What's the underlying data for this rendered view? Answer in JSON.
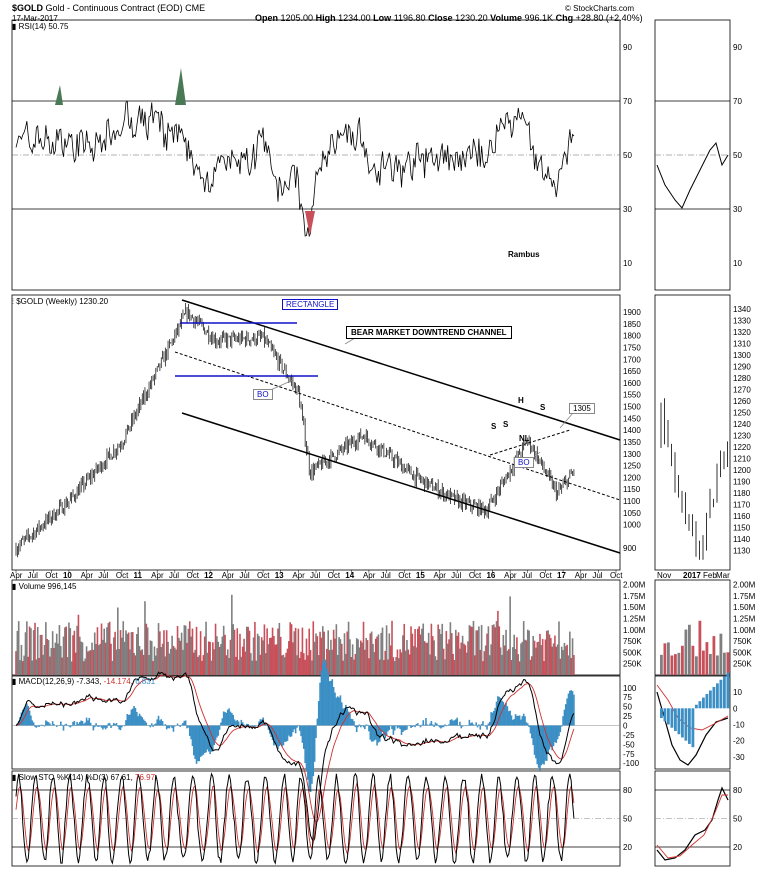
{
  "header": {
    "symbol": "$GOLD",
    "name": "Gold - Continuous Contract (EOD)",
    "exchange": "CME",
    "date": "17-Mar-2017",
    "open_label": "Open",
    "open": "1205.00",
    "high_label": "High",
    "high": "1234.00",
    "low_label": "Low",
    "low": "1196.80",
    "close_label": "Close",
    "close": "1230.20",
    "volume_label": "Volume",
    "volume": "996.1K",
    "chg_label": "Chg",
    "chg": "+28.80 (+2.40%)",
    "copyright": "© StockCharts.com"
  },
  "rsi_panel": {
    "legend": "RSI(14) 50.75",
    "ticks": [
      "90",
      "70",
      "50",
      "30",
      "10"
    ],
    "watermark": "Rambus"
  },
  "price_panel": {
    "legend": "$GOLD (Weekly) 1230.20",
    "ticks": [
      "1900",
      "1850",
      "1800",
      "1750",
      "1700",
      "1650",
      "1600",
      "1550",
      "1500",
      "1450",
      "1400",
      "1350",
      "1300",
      "1250",
      "1200",
      "1150",
      "1100",
      "1050",
      "1000",
      "900"
    ],
    "right_ticks": [
      "1340",
      "1330",
      "1320",
      "1310",
      "1300",
      "1290",
      "1280",
      "1270",
      "1260",
      "1250",
      "1240",
      "1230",
      "1220",
      "1210",
      "1200",
      "1190",
      "1180",
      "1170",
      "1160",
      "1150",
      "1140",
      "1130"
    ],
    "annotations": {
      "rectangle": "RECTANGLE",
      "channel": "BEAR MARKET DOWNTREND  CHANNEL",
      "bo1": "BO",
      "bo2": "BO",
      "target": "1305",
      "s1": "S",
      "s2": "S",
      "h": "H",
      "s3": "S",
      "nl": "NL"
    }
  },
  "x_axis": {
    "labels": [
      "Apr",
      "Jul",
      "Oct",
      "10",
      "Apr",
      "Jul",
      "Oct",
      "11",
      "Apr",
      "Jul",
      "Oct",
      "12",
      "Apr",
      "Jul",
      "Oct",
      "13",
      "Apr",
      "Jul",
      "Oct",
      "14",
      "Apr",
      "Jul",
      "Oct",
      "15",
      "Apr",
      "Jul",
      "Oct",
      "16",
      "Apr",
      "Jul",
      "Oct",
      "17",
      "Apr",
      "Jul",
      "Oct"
    ],
    "right_labels": [
      "Nov",
      "2017",
      "Feb",
      "Mar"
    ]
  },
  "volume_panel": {
    "legend": "Volume 996,145",
    "ticks": [
      "2.00M",
      "1.75M",
      "1.50M",
      "1.25M",
      "1.00M",
      "750K",
      "500K",
      "250K"
    ]
  },
  "macd_panel": {
    "legend_name": "MACD(12,26,9)",
    "legend_macd": "-7.343",
    "legend_signal": "-14.174",
    "legend_hist": "6.831",
    "ticks": [
      "100",
      "75",
      "50",
      "25",
      "0",
      "-25",
      "-50",
      "-75",
      "-100"
    ],
    "right_ticks": [
      "10",
      "0",
      "-10",
      "-20",
      "-30"
    ]
  },
  "sto_panel": {
    "legend_name": "Slow STO %K(14) %D(3)",
    "legend_k": "67.61",
    "legend_d": "76.97",
    "ticks": [
      "80",
      "50",
      "20"
    ]
  },
  "colors": {
    "up": "#7f7f7f",
    "down": "#c8505a",
    "macd_hist": "#3b8fc4",
    "signal": "#d03030",
    "rsi_fill": "#4a7a55",
    "blue": "#1010c8"
  },
  "chart_data": {
    "type": "line",
    "title": "$GOLD (Weekly)",
    "xlabel": "",
    "ylabel": "",
    "x_range": [
      "2009-04",
      "2017-10"
    ],
    "ylim": [
      850,
      1930
    ],
    "approx_price_path": {
      "x": [
        "2009-04",
        "2010-01",
        "2010-10",
        "2011-09",
        "2012-02",
        "2012-10",
        "2013-04",
        "2013-06",
        "2014-03",
        "2014-12",
        "2015-07",
        "2015-12",
        "2016-07",
        "2016-12",
        "2017-03"
      ],
      "y": [
        900,
        1100,
        1350,
        1900,
        1780,
        1790,
        1560,
        1220,
        1380,
        1200,
        1100,
        1060,
        1360,
        1130,
        1230
      ]
    },
    "rsi": {
      "ylim": [
        0,
        100
      ],
      "levels": [
        70,
        30
      ],
      "last": 50.75
    },
    "macd": {
      "macd": -7.343,
      "signal": -14.174,
      "histogram": 6.831
    },
    "slow_sto": {
      "k": 67.61,
      "d": 76.97,
      "levels": [
        80,
        20
      ]
    }
  }
}
